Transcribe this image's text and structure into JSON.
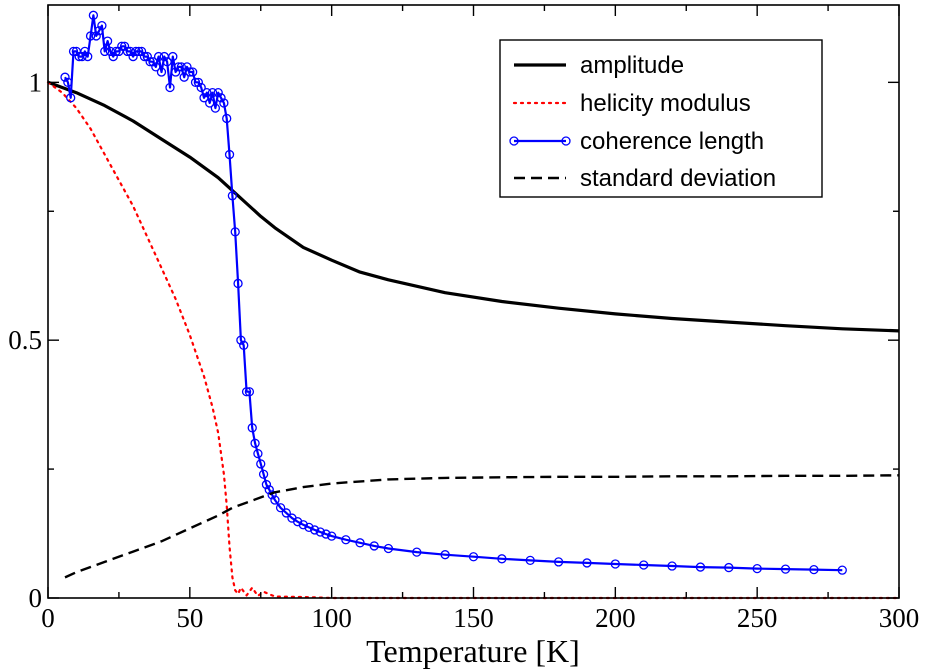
{
  "chart_data": {
    "type": "line",
    "title": "",
    "xlabel": "Temperature [K]",
    "ylabel": "",
    "xlim": [
      0,
      300
    ],
    "ylim": [
      0,
      1.15
    ],
    "xticks": [
      0,
      50,
      100,
      150,
      200,
      250,
      300
    ],
    "xtick_labels": [
      "0",
      "50",
      "100",
      "150",
      "200",
      "250",
      "300"
    ],
    "yticks": [
      0,
      0.5,
      1
    ],
    "ytick_labels": [
      "0",
      "0.5",
      "1"
    ],
    "grid": false,
    "legend_position": "top-right",
    "series": [
      {
        "name": "amplitude",
        "color": "#000000",
        "style": "solid",
        "x": [
          0,
          10,
          20,
          30,
          40,
          50,
          60,
          65,
          70,
          75,
          80,
          90,
          100,
          110,
          120,
          140,
          160,
          180,
          200,
          220,
          240,
          260,
          280,
          300
        ],
        "y": [
          1.0,
          0.98,
          0.955,
          0.925,
          0.89,
          0.855,
          0.815,
          0.79,
          0.765,
          0.74,
          0.718,
          0.68,
          0.655,
          0.632,
          0.617,
          0.592,
          0.575,
          0.562,
          0.551,
          0.542,
          0.535,
          0.528,
          0.522,
          0.518
        ]
      },
      {
        "name": "helicity modulus",
        "color": "#ff0000",
        "style": "dotted",
        "x": [
          0,
          5,
          10,
          15,
          20,
          25,
          30,
          35,
          40,
          45,
          50,
          55,
          58,
          60,
          62,
          63,
          64,
          65,
          66,
          67,
          68,
          70,
          72,
          74,
          76,
          80,
          90,
          100,
          120,
          150,
          200,
          250,
          300
        ],
        "y": [
          1.0,
          0.98,
          0.95,
          0.91,
          0.86,
          0.81,
          0.76,
          0.7,
          0.64,
          0.58,
          0.51,
          0.43,
          0.37,
          0.32,
          0.24,
          0.18,
          0.1,
          0.04,
          0.015,
          0.008,
          0.02,
          0.005,
          0.02,
          0.004,
          0.012,
          0.003,
          0.002,
          0.0,
          0.0,
          0.0,
          0.0,
          0.0,
          0.0
        ]
      },
      {
        "name": "coherence length",
        "color": "#0000ff",
        "style": "solid-circles",
        "x": [
          6,
          7,
          8,
          9,
          10,
          11,
          12,
          13,
          14,
          15,
          16,
          17,
          18,
          19,
          20,
          21,
          22,
          23,
          24,
          25,
          26,
          27,
          28,
          29,
          30,
          31,
          32,
          33,
          34,
          35,
          36,
          37,
          38,
          39,
          40,
          41,
          42,
          43,
          44,
          45,
          46,
          47,
          48,
          49,
          50,
          51,
          52,
          53,
          54,
          55,
          56,
          57,
          58,
          59,
          60,
          61,
          62,
          63,
          64,
          65,
          66,
          67,
          68,
          69,
          70,
          71,
          72,
          73,
          74,
          75,
          76,
          77,
          78,
          79,
          80,
          82,
          84,
          86,
          88,
          90,
          92,
          94,
          96,
          98,
          100,
          105,
          110,
          115,
          120,
          130,
          140,
          150,
          160,
          170,
          180,
          190,
          200,
          210,
          220,
          230,
          240,
          250,
          260,
          270,
          280
        ],
        "y": [
          1.01,
          1.0,
          0.97,
          1.06,
          1.06,
          1.05,
          1.05,
          1.06,
          1.05,
          1.09,
          1.13,
          1.09,
          1.1,
          1.11,
          1.06,
          1.08,
          1.06,
          1.05,
          1.06,
          1.06,
          1.07,
          1.07,
          1.06,
          1.06,
          1.05,
          1.06,
          1.06,
          1.06,
          1.05,
          1.05,
          1.04,
          1.04,
          1.03,
          1.05,
          1.02,
          1.05,
          1.04,
          0.99,
          1.05,
          1.02,
          1.03,
          1.03,
          1.01,
          1.03,
          1.02,
          1.02,
          1.0,
          1.0,
          0.99,
          0.97,
          0.98,
          0.96,
          0.98,
          0.95,
          0.98,
          0.97,
          0.96,
          0.93,
          0.86,
          0.78,
          0.71,
          0.61,
          0.5,
          0.49,
          0.4,
          0.4,
          0.33,
          0.3,
          0.28,
          0.26,
          0.24,
          0.22,
          0.21,
          0.2,
          0.19,
          0.175,
          0.165,
          0.155,
          0.148,
          0.142,
          0.137,
          0.132,
          0.128,
          0.124,
          0.12,
          0.113,
          0.107,
          0.101,
          0.096,
          0.089,
          0.084,
          0.08,
          0.076,
          0.073,
          0.07,
          0.068,
          0.066,
          0.064,
          0.062,
          0.06,
          0.059,
          0.057,
          0.056,
          0.055,
          0.054
        ]
      },
      {
        "name": "standard deviation",
        "color": "#000000",
        "style": "dashed",
        "x": [
          6,
          10,
          20,
          30,
          40,
          50,
          60,
          65,
          70,
          75,
          80,
          90,
          100,
          120,
          140,
          160,
          180,
          200,
          220,
          240,
          260,
          280,
          300
        ],
        "y": [
          0.04,
          0.05,
          0.07,
          0.09,
          0.11,
          0.135,
          0.16,
          0.175,
          0.185,
          0.195,
          0.205,
          0.215,
          0.222,
          0.23,
          0.233,
          0.234,
          0.235,
          0.235,
          0.236,
          0.236,
          0.237,
          0.237,
          0.238
        ]
      }
    ]
  }
}
